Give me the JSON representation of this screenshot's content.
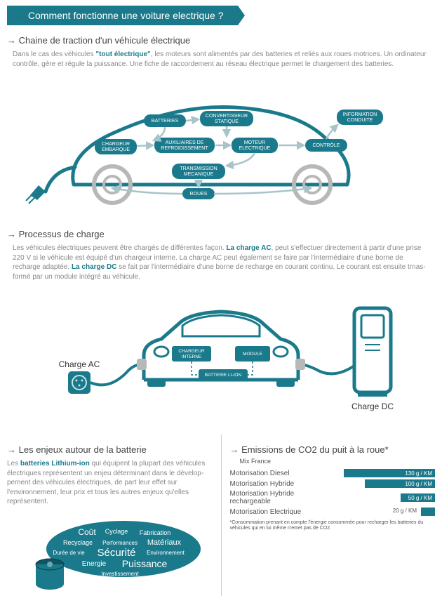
{
  "banner": "Comment fonctionne une voiture electrique ?",
  "section1": {
    "title": "Chaine de traction d'un véhicule électrique",
    "body_pre": "Dans le cas des véhicules ",
    "body_bold": "\"tout électrique\"",
    "body_post": ", les moteurs sont alimentés par des batteries et reliés aux roues motrices. Un ordinateur contrôle, gère et régule la puissance. Une fiche de raccordement au réseau électrique permet le chargement des batteries.",
    "nodes": {
      "batteries": "BATTERIES",
      "conv": "CONVERTISSEUR STATIQUE",
      "info": "INFORMATION CONDUITE",
      "chargeur": "CHARGEUR EMBARQUE",
      "aux": "AUXILIAIRES DE REFROIDISSEMENT",
      "moteur": "MOTEUR ELECTRIQUE",
      "controle": "CONTRÔLE",
      "trans": "TRANSMISSION MECANIQUE",
      "roues": "ROUES"
    }
  },
  "section2": {
    "title": "Processus de charge",
    "body_pre": "Les véhicules électriques peuvent être chargés de différentes façon. ",
    "body_b1": "La charge AC",
    "body_mid": ", peut s'effectuer directement à partir d'une prise 220 V si le véhicule est équipé d'un chargeur interne. La charge AC peut également se faire par l'intermédiaire d'une borne de recharge adaptée. ",
    "body_b2": "La charge DC",
    "body_post": " se fait par l'intermédiaire d'une borne de recharge en courant continu. Le courant est ensuite trnas-formé par un module intégré au véhicule.",
    "labels": {
      "ac": "Charge AC",
      "dc": "Charge DC",
      "chargeur": "CHARGEUR INTERNE",
      "module": "MODULE",
      "batterie": "BATTERIE LI-ION"
    }
  },
  "section3": {
    "title": "Les enjeux autour de la batterie",
    "body_pre": "Les ",
    "body_bold": "batteries Lithium-ion",
    "body_post": " qui équipent la plupart des véhicules électriques représentent un enjeu déterminant dans le dévelop-pement des véhicules électriques, de part leur effet sur l'environnement, leur prix et tous les autres enjeux qu'elles représentent.",
    "words": [
      "Coût",
      "Cyclage",
      "Fabrication",
      "Recyclage",
      "Performances",
      "Matériaux",
      "Durée de vie",
      "Sécurité",
      "Environnement",
      "Energie",
      "Puissance",
      "Investissement"
    ]
  },
  "section4": {
    "title": "Emissions de CO2 du puit à la roue*",
    "sub": "Mix France",
    "rows": [
      {
        "label": "Motorisation Diesel",
        "value": "130 g / KM",
        "pct": 100
      },
      {
        "label": "Motorisation Hybride",
        "value": "100 g / KM",
        "pct": 77
      },
      {
        "label": "Motorisation Hybride rechargeable",
        "value": "50 g / KM",
        "pct": 38
      },
      {
        "label": "Motorisation Electrique",
        "value": "20 g / KM",
        "pct": 15
      }
    ],
    "note": "*Consommation prenant en compte l'énergie consommée pour recharger les batteries du véhicules qui en lui même n'emet pas de CO2."
  },
  "colors": {
    "teal": "#1a7a8c",
    "teal_dark": "#0f5561",
    "grey_text": "#888",
    "outline": "#1a7a8c"
  }
}
